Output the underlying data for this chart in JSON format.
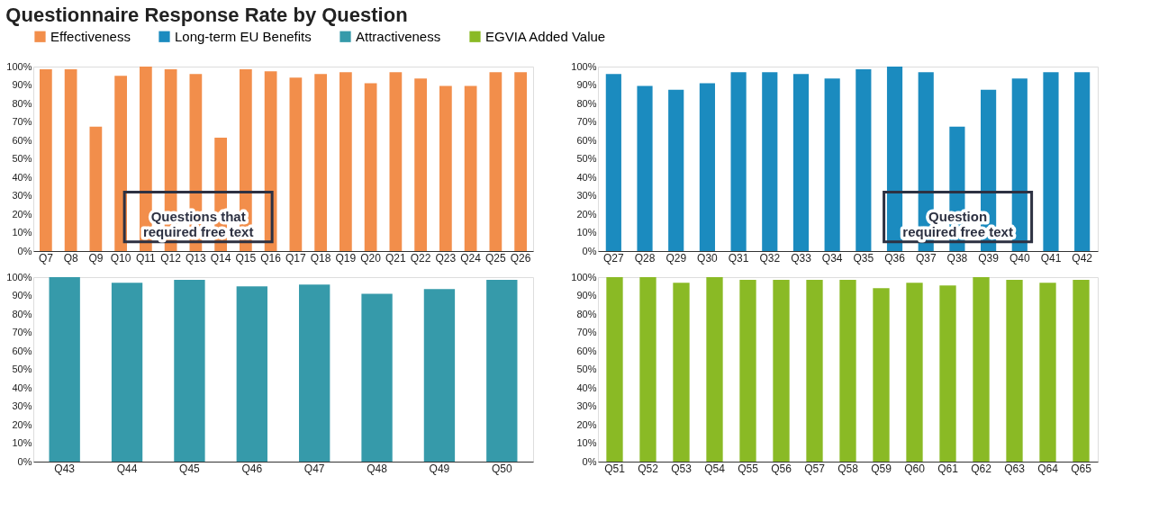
{
  "chart_data": [
    {
      "type": "bar",
      "title": "Questionnaire Response Rate by Question",
      "categories": [
        "Q7",
        "Q8",
        "Q9",
        "Q10",
        "Q11",
        "Q12",
        "Q13",
        "Q14",
        "Q15",
        "Q16",
        "Q17",
        "Q18",
        "Q19",
        "Q20",
        "Q21",
        "Q22",
        "Q23",
        "Q24",
        "Q25",
        "Q26"
      ],
      "series": [
        {
          "name": "Effectiveness",
          "color": "#f28e4b",
          "values": [
            98.5,
            98.5,
            67.5,
            95,
            100,
            98.5,
            96,
            61.5,
            98.5,
            97.5,
            94,
            96,
            97,
            91,
            97,
            93.5,
            89.5,
            89.5,
            97,
            97
          ]
        }
      ],
      "ylim": [
        0,
        100
      ],
      "yticks": [
        {
          "value": 0,
          "label": "0%"
        },
        {
          "value": 10,
          "label": "10%"
        },
        {
          "value": 20,
          "label": "20%"
        },
        {
          "value": 30,
          "label": "30%"
        },
        {
          "value": 40,
          "label": "40%"
        },
        {
          "value": 50,
          "label": "50%"
        },
        {
          "value": 60,
          "label": "60%"
        },
        {
          "value": 70,
          "label": "70%"
        },
        {
          "value": 80,
          "label": "80%"
        },
        {
          "value": 90,
          "label": "90%"
        },
        {
          "value": 100,
          "label": "100%"
        }
      ],
      "annotations": [
        "Questions that\nrequired free text"
      ],
      "legend": "top",
      "grid": false
    },
    {
      "type": "bar",
      "categories": [
        "Q27",
        "Q28",
        "Q29",
        "Q30",
        "Q31",
        "Q32",
        "Q33",
        "Q34",
        "Q35",
        "Q36",
        "Q37",
        "Q38",
        "Q39",
        "Q40",
        "Q41",
        "Q42"
      ],
      "series": [
        {
          "name": "Long-term EU Benefits",
          "color": "#1b8bbf",
          "values": [
            96,
            89.5,
            87.5,
            91,
            97,
            97,
            96,
            93.5,
            98.5,
            100,
            97,
            67.5,
            87.5,
            93.5,
            97,
            97
          ]
        }
      ],
      "ylim": [
        0,
        100
      ],
      "yticks": [
        {
          "value": 0,
          "label": "0%"
        },
        {
          "value": 10,
          "label": "10%"
        },
        {
          "value": 20,
          "label": "20%"
        },
        {
          "value": 30,
          "label": "30%"
        },
        {
          "value": 40,
          "label": "40%"
        },
        {
          "value": 50,
          "label": "50%"
        },
        {
          "value": 60,
          "label": "60%"
        },
        {
          "value": 70,
          "label": "70%"
        },
        {
          "value": 80,
          "label": "80%"
        },
        {
          "value": 90,
          "label": "90%"
        },
        {
          "value": 100,
          "label": "100%"
        }
      ],
      "annotations": [
        "Question\nrequired free text"
      ],
      "legend": "top",
      "grid": false
    },
    {
      "type": "bar",
      "categories": [
        "Q43",
        "Q44",
        "Q45",
        "Q46",
        "Q47",
        "Q48",
        "Q49",
        "Q50"
      ],
      "series": [
        {
          "name": "Attractiveness",
          "color": "#369aaa",
          "values": [
            100,
            97,
            98.5,
            95,
            96,
            91,
            93.5,
            98.5
          ]
        }
      ],
      "ylim": [
        0,
        100
      ],
      "yticks": [
        {
          "value": 0,
          "label": "0%"
        },
        {
          "value": 10,
          "label": "10%"
        },
        {
          "value": 20,
          "label": "20%"
        },
        {
          "value": 30,
          "label": "30%"
        },
        {
          "value": 40,
          "label": "40%"
        },
        {
          "value": 50,
          "label": "50%"
        },
        {
          "value": 60,
          "label": "60%"
        },
        {
          "value": 70,
          "label": "70%"
        },
        {
          "value": 80,
          "label": "80%"
        },
        {
          "value": 90,
          "label": "90%"
        },
        {
          "value": 100,
          "label": "100%"
        }
      ],
      "legend": "top",
      "grid": false
    },
    {
      "type": "bar",
      "categories": [
        "Q51",
        "Q52",
        "Q53",
        "Q54",
        "Q55",
        "Q56",
        "Q57",
        "Q58",
        "Q59",
        "Q60",
        "Q61",
        "Q62",
        "Q63",
        "Q64",
        "Q65"
      ],
      "series": [
        {
          "name": "EGVIA Added Value",
          "color": "#8aba25",
          "values": [
            100,
            100,
            97,
            100,
            98.5,
            98.5,
            98.5,
            98.5,
            94,
            97,
            95.5,
            100,
            98.5,
            97,
            98.5
          ]
        }
      ],
      "ylim": [
        0,
        100
      ],
      "yticks": [
        {
          "value": 0,
          "label": "0%"
        },
        {
          "value": 10,
          "label": "10%"
        },
        {
          "value": 20,
          "label": "20%"
        },
        {
          "value": 30,
          "label": "30%"
        },
        {
          "value": 40,
          "label": "40%"
        },
        {
          "value": 50,
          "label": "50%"
        },
        {
          "value": 60,
          "label": "60%"
        },
        {
          "value": 70,
          "label": "70%"
        },
        {
          "value": 80,
          "label": "80%"
        },
        {
          "value": 90,
          "label": "90%"
        },
        {
          "value": 100,
          "label": "100%"
        }
      ],
      "legend": "top",
      "grid": false
    }
  ]
}
